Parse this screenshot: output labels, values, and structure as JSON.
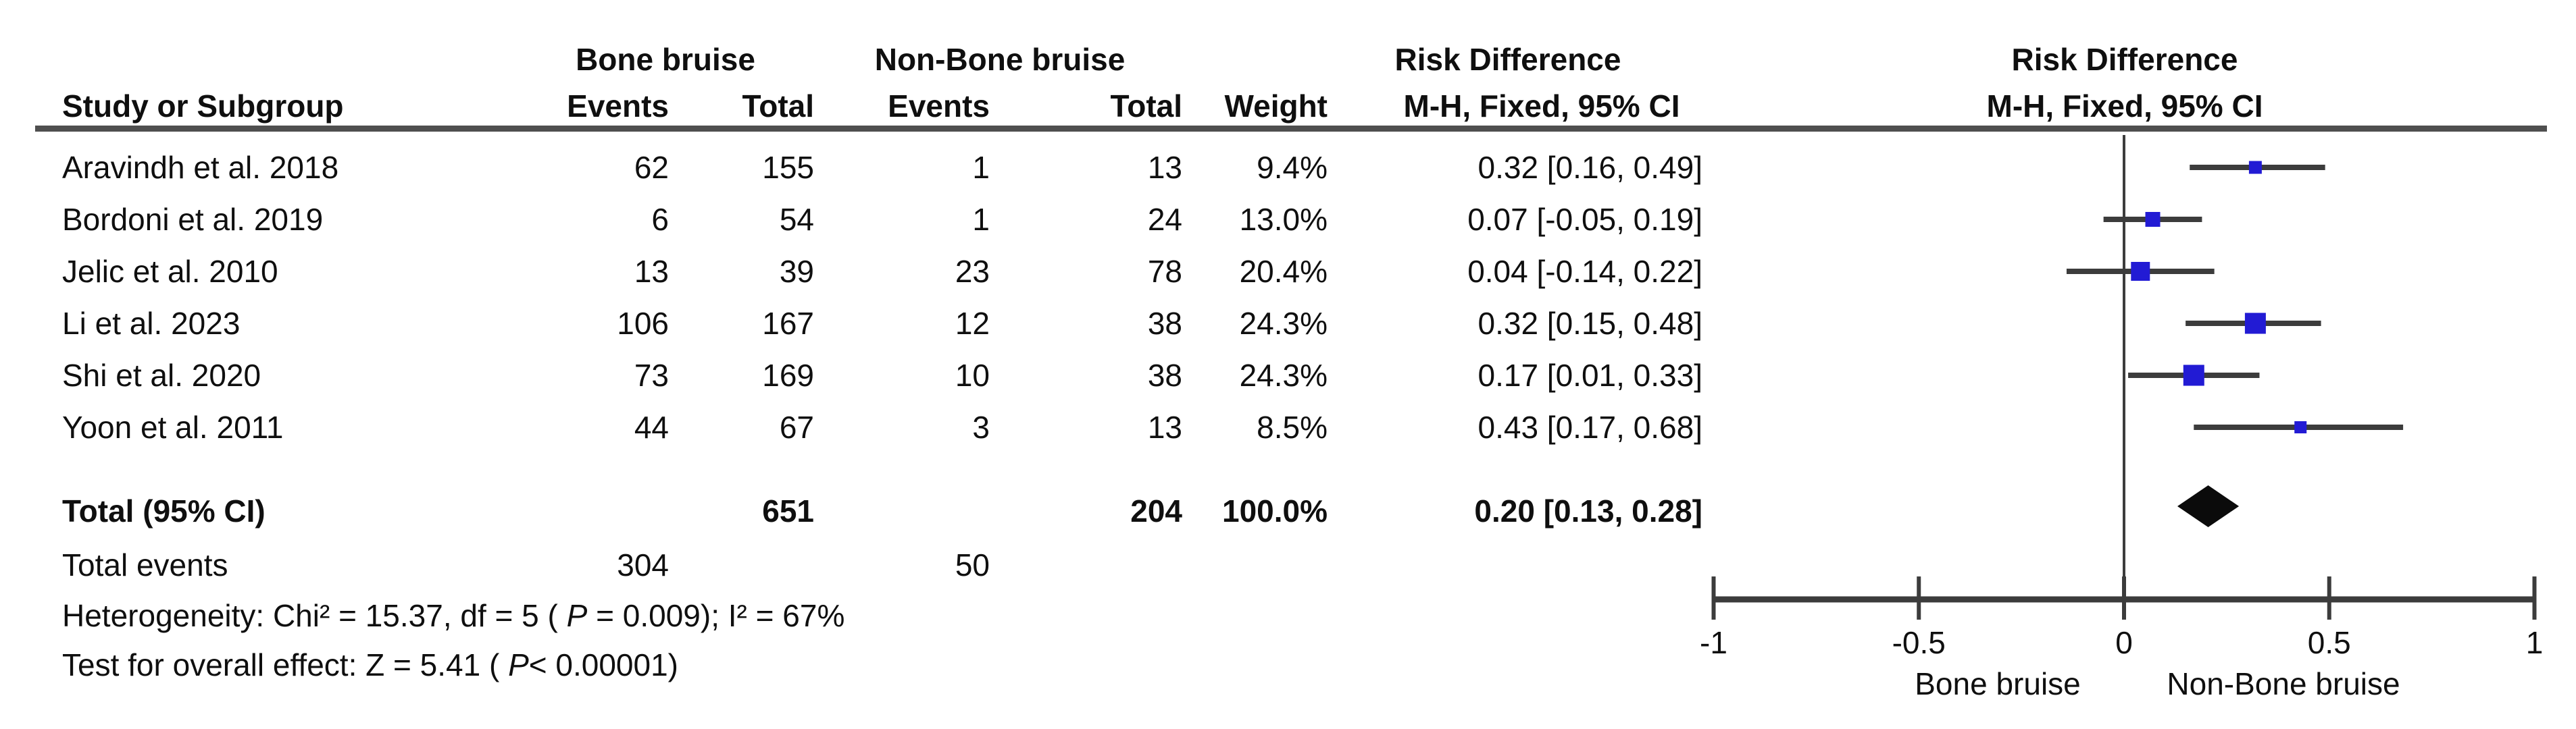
{
  "header": {
    "study_col": "Study or Subgroup",
    "group1": "Bone bruise",
    "group2": "Non-Bone bruise",
    "events": "Events",
    "total": "Total",
    "weight": "Weight",
    "rd_title": "Risk Difference",
    "rd_sub": "M-H, Fixed, 95% CI"
  },
  "rows": [
    {
      "study": "Aravindh et al. 2018",
      "events_bone": "62",
      "total_bone": "155",
      "events_non": "1",
      "total_non": "13",
      "weight": "9.4%",
      "rd_ci": "0.32 [0.16, 0.49]"
    },
    {
      "study": "Bordoni et al. 2019",
      "events_bone": "6",
      "total_bone": "54",
      "events_non": "1",
      "total_non": "24",
      "weight": "13.0%",
      "rd_ci": "0.07 [-0.05, 0.19]"
    },
    {
      "study": "Jelic et al. 2010",
      "events_bone": "13",
      "total_bone": "39",
      "events_non": "23",
      "total_non": "78",
      "weight": "20.4%",
      "rd_ci": "0.04 [-0.14, 0.22]"
    },
    {
      "study": "Li et al. 2023",
      "events_bone": "106",
      "total_bone": "167",
      "events_non": "12",
      "total_non": "38",
      "weight": "24.3%",
      "rd_ci": "0.32 [0.15, 0.48]"
    },
    {
      "study": "Shi et al. 2020",
      "events_bone": "73",
      "total_bone": "169",
      "events_non": "10",
      "total_non": "38",
      "weight": "24.3%",
      "rd_ci": "0.17 [0.01, 0.33]"
    },
    {
      "study": "Yoon et al. 2011",
      "events_bone": "44",
      "total_bone": "67",
      "events_non": "3",
      "total_non": "13",
      "weight": "8.5%",
      "rd_ci": "0.43 [0.17, 0.68]"
    }
  ],
  "totals": {
    "label": "Total (95% CI)",
    "total_bone": "651",
    "total_non": "204",
    "weight": "100.0%",
    "rd_ci": "0.20 [0.13, 0.28]",
    "events_label": "Total events",
    "events_bone": "304",
    "events_non": "50"
  },
  "footnotes": {
    "heterogeneity": [
      "Heterogeneity: Chi² = 15.37, df = 5 ( ",
      "P",
      " = 0.009); I² = 67%"
    ],
    "overall": [
      "Test for overall effect: Z = 5.41 ( ",
      "P",
      "< 0.00001)"
    ]
  },
  "axis": {
    "tick_labels": [
      "-1",
      "-0.5",
      "0",
      "0.5",
      "1"
    ],
    "favors_left": "Bone bruise",
    "favors_right": "Non-Bone bruise"
  },
  "colors": {
    "square": "#221bd4",
    "diamond": "#0b0b0b",
    "line": "#3c3c3c",
    "rule": "#4f4f4f",
    "text": "#0f0f0f"
  },
  "chart_data": {
    "type": "forest",
    "title": "Risk Difference",
    "method": "M-H, Fixed, 95% CI",
    "xlim": [
      -1,
      1
    ],
    "x_ticks": [
      -1,
      -0.5,
      0,
      0.5,
      1
    ],
    "grid": false,
    "legend_left": "Bone bruise",
    "legend_right": "Non-Bone bruise",
    "studies": [
      {
        "name": "Aravindh et al. 2018",
        "rd": 0.32,
        "ci_low": 0.16,
        "ci_high": 0.49,
        "weight_pct": 9.4
      },
      {
        "name": "Bordoni et al. 2019",
        "rd": 0.07,
        "ci_low": -0.05,
        "ci_high": 0.19,
        "weight_pct": 13.0
      },
      {
        "name": "Jelic et al. 2010",
        "rd": 0.04,
        "ci_low": -0.14,
        "ci_high": 0.22,
        "weight_pct": 20.4
      },
      {
        "name": "Li et al. 2023",
        "rd": 0.32,
        "ci_low": 0.15,
        "ci_high": 0.48,
        "weight_pct": 24.3
      },
      {
        "name": "Shi et al. 2020",
        "rd": 0.17,
        "ci_low": 0.01,
        "ci_high": 0.33,
        "weight_pct": 24.3
      },
      {
        "name": "Yoon et al. 2011",
        "rd": 0.43,
        "ci_low": 0.17,
        "ci_high": 0.68,
        "weight_pct": 8.5
      }
    ],
    "total": {
      "rd": 0.2,
      "ci_low": 0.13,
      "ci_high": 0.28,
      "weight_pct": 100.0
    },
    "heterogeneity": {
      "chi2": 15.37,
      "df": 5,
      "p": 0.009,
      "i2_pct": 67
    },
    "overall_effect": {
      "z": 5.41,
      "p": "<0.00001"
    }
  }
}
